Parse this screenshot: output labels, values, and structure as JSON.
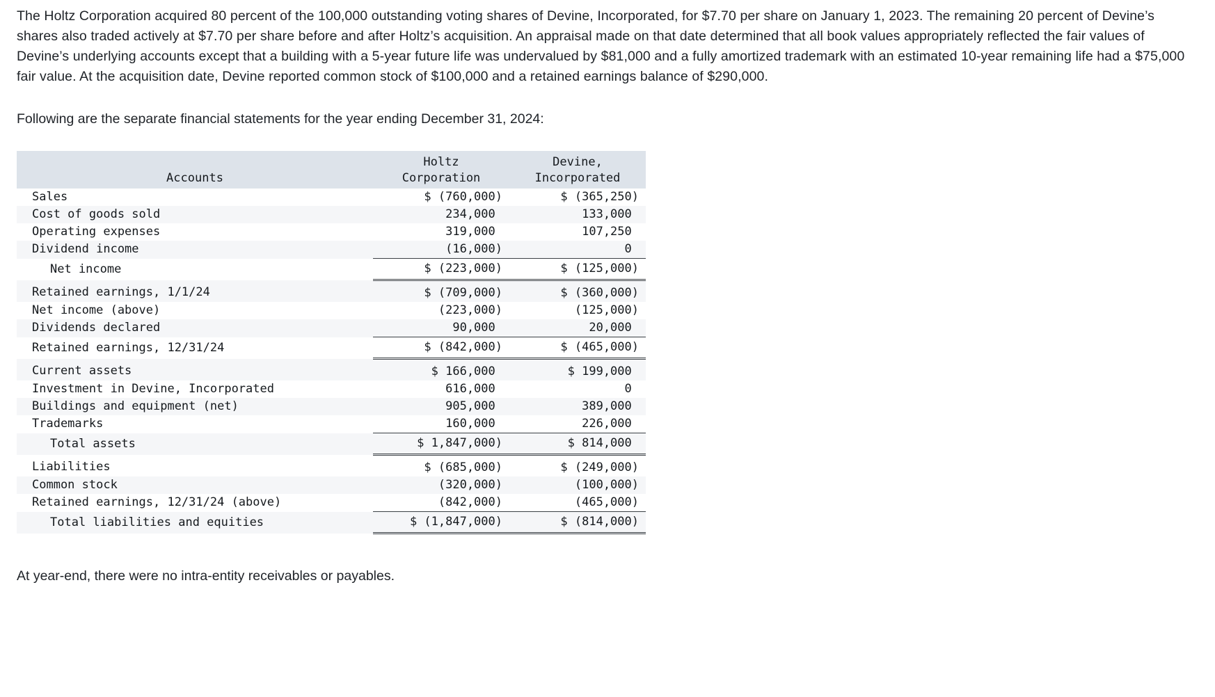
{
  "colors": {
    "header_bg": "#dde3ea",
    "stripe_bg": "#f5f6f8",
    "rule": "#3a3f44"
  },
  "intro": {
    "paragraph1": "The Holtz Corporation acquired 80 percent of the 100,000 outstanding voting shares of Devine, Incorporated, for $7.70 per share on January 1, 2023. The remaining 20 percent of Devine’s shares also traded actively at $7.70 per share before and after Holtz’s acquisition. An appraisal made on that date determined that all book values appropriately reflected the fair values of Devine’s underlying accounts except that a building with a 5-year future life was undervalued by $81,000 and a fully amortized trademark with an estimated 10-year remaining life had a $75,000 fair value. At the acquisition date, Devine reported common stock of $100,000 and a retained earnings balance of $290,000.",
    "paragraph2": "Following are the separate financial statements for the year ending December 31, 2024:"
  },
  "table": {
    "headers": {
      "accounts": "Accounts",
      "holtz_line1": "Holtz",
      "holtz_line2": "Corporation",
      "devine_line1": "Devine,",
      "devine_line2": "Incorporated"
    },
    "rows": [
      {
        "label": "Sales",
        "holtz": "$ (760,000)",
        "devine": "$ (365,250)"
      },
      {
        "label": "Cost of goods sold",
        "holtz": "234,000 ",
        "devine": "133,000 "
      },
      {
        "label": "Operating expenses",
        "holtz": "319,000 ",
        "devine": "107,250 "
      },
      {
        "label": "Dividend income",
        "holtz": "(16,000)",
        "devine": "0 "
      },
      {
        "label": "Net income",
        "holtz": "$ (223,000)",
        "devine": "$ (125,000)",
        "indent": true,
        "total": true
      },
      {
        "label": "Retained earnings, 1/1/24",
        "holtz": "$ (709,000)",
        "devine": "$ (360,000)"
      },
      {
        "label": "Net income (above)",
        "holtz": "(223,000)",
        "devine": "(125,000)"
      },
      {
        "label": "Dividends declared",
        "holtz": "90,000 ",
        "devine": "20,000 "
      },
      {
        "label": "Retained earnings, 12/31/24",
        "holtz": "$ (842,000)",
        "devine": "$ (465,000)",
        "total": true
      },
      {
        "label": "Current assets",
        "holtz": "$ 166,000 ",
        "devine": "$ 199,000 "
      },
      {
        "label": "Investment in Devine, Incorporated",
        "holtz": "616,000 ",
        "devine": "0 "
      },
      {
        "label": "Buildings and equipment (net)",
        "holtz": "905,000 ",
        "devine": "389,000 "
      },
      {
        "label": "Trademarks",
        "holtz": "160,000 ",
        "devine": "226,000 "
      },
      {
        "label": "Total assets",
        "holtz": "$ 1,847,000)",
        "devine": "$ 814,000 ",
        "indent": true,
        "total": true
      },
      {
        "label": "Liabilities",
        "holtz": "$ (685,000)",
        "devine": "$ (249,000)"
      },
      {
        "label": "Common stock",
        "holtz": "(320,000)",
        "devine": "(100,000)"
      },
      {
        "label": "Retained earnings, 12/31/24 (above)",
        "holtz": "(842,000)",
        "devine": "(465,000)"
      },
      {
        "label": "Total liabilities and equities",
        "holtz": "$ (1,847,000)",
        "devine": "$ (814,000)",
        "indent": true,
        "total": true
      }
    ]
  },
  "footnote": "At year-end, there were no intra-entity receivables or payables."
}
